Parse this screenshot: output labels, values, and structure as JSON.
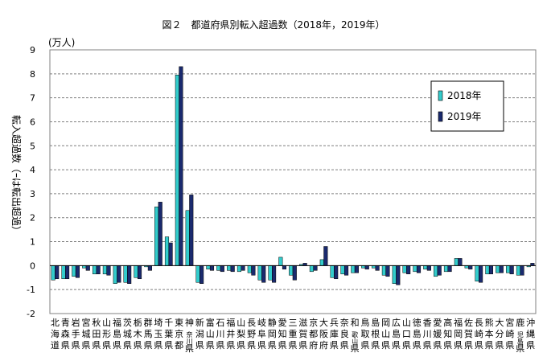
{
  "chart_data": {
    "type": "bar",
    "title": "図２　都道府県別転入超過数（2018年，2019年）",
    "unit_label": "(万人)",
    "ylabel": "転入超過数（ｰは転出超過）",
    "ylim": [
      -2,
      9
    ],
    "yticks": [
      -2,
      -1,
      0,
      1,
      2,
      3,
      4,
      5,
      6,
      7,
      8,
      9
    ],
    "grid": true,
    "legend_position": "top-right",
    "categories": [
      "北海道",
      "青森県",
      "岩手県",
      "宮城県",
      "秋田県",
      "山形県",
      "福島県",
      "茨城県",
      "栃木県",
      "群馬県",
      "埼玉県",
      "千葉県",
      "東京都",
      "神奈川県",
      "新潟県",
      "富山県",
      "石川県",
      "福井県",
      "山梨県",
      "長野県",
      "岐阜県",
      "静岡県",
      "愛知県",
      "三重県",
      "滋賀県",
      "京都府",
      "大阪府",
      "兵庫県",
      "奈良県",
      "和歌山県",
      "鳥取県",
      "島根県",
      "岡山県",
      "広島県",
      "山口県",
      "徳島県",
      "香川県",
      "愛媛県",
      "高知県",
      "福岡県",
      "佐賀県",
      "長崎県",
      "熊本県",
      "大分県",
      "宮崎県",
      "鹿児島県",
      "沖縄県"
    ],
    "category_label_lines": [
      [
        "北",
        "海",
        "道"
      ],
      [
        "青",
        "森",
        "県"
      ],
      [
        "岩",
        "手",
        "県"
      ],
      [
        "宮",
        "城",
        "県"
      ],
      [
        "秋",
        "田",
        "県"
      ],
      [
        "山",
        "形",
        "県"
      ],
      [
        "福",
        "島",
        "県"
      ],
      [
        "茨",
        "城",
        "県"
      ],
      [
        "栃",
        "木",
        "県"
      ],
      [
        "群",
        "馬",
        "県"
      ],
      [
        "埼",
        "玉",
        "県"
      ],
      [
        "千",
        "葉",
        "県"
      ],
      [
        "東",
        "京",
        "都"
      ],
      [
        "神",
        "奈川",
        "県"
      ],
      [
        "新",
        "潟",
        "県"
      ],
      [
        "富",
        "山",
        "県"
      ],
      [
        "石",
        "川",
        "県"
      ],
      [
        "福",
        "井",
        "県"
      ],
      [
        "山",
        "梨",
        "県"
      ],
      [
        "長",
        "野",
        "県"
      ],
      [
        "岐",
        "阜",
        "県"
      ],
      [
        "静",
        "岡",
        "県"
      ],
      [
        "愛",
        "知",
        "県"
      ],
      [
        "三",
        "重",
        "県"
      ],
      [
        "滋",
        "賀",
        "県"
      ],
      [
        "京",
        "都",
        "府"
      ],
      [
        "大",
        "阪",
        "府"
      ],
      [
        "兵",
        "庫",
        "県"
      ],
      [
        "奈",
        "良",
        "県"
      ],
      [
        "和",
        "歌山",
        "県"
      ],
      [
        "鳥",
        "取",
        "県"
      ],
      [
        "島",
        "根",
        "県"
      ],
      [
        "岡",
        "山",
        "県"
      ],
      [
        "広",
        "島",
        "県"
      ],
      [
        "山",
        "口",
        "県"
      ],
      [
        "徳",
        "島",
        "県"
      ],
      [
        "香",
        "川",
        "県"
      ],
      [
        "愛",
        "媛",
        "県"
      ],
      [
        "高",
        "知",
        "県"
      ],
      [
        "福",
        "岡",
        "県"
      ],
      [
        "佐",
        "賀",
        "県"
      ],
      [
        "長",
        "崎",
        "県"
      ],
      [
        "熊",
        "本",
        "県"
      ],
      [
        "大",
        "分",
        "県"
      ],
      [
        "宮",
        "崎",
        "県"
      ],
      [
        "鹿",
        "児島",
        "県"
      ],
      [
        "沖",
        "縄",
        "県"
      ]
    ],
    "series": [
      {
        "name": "2018年",
        "color": "#33cccc",
        "values": [
          -0.6,
          -0.55,
          -0.45,
          -0.1,
          -0.35,
          -0.35,
          -0.75,
          -0.7,
          -0.5,
          -0.05,
          2.45,
          1.2,
          7.95,
          2.3,
          -0.7,
          -0.15,
          -0.2,
          -0.2,
          -0.25,
          -0.3,
          -0.6,
          -0.6,
          0.35,
          -0.4,
          0.05,
          -0.25,
          0.25,
          -0.5,
          -0.35,
          -0.3,
          -0.1,
          -0.1,
          -0.4,
          -0.75,
          -0.3,
          -0.25,
          -0.15,
          -0.45,
          -0.25,
          0.3,
          -0.1,
          -0.65,
          -0.35,
          -0.3,
          -0.3,
          -0.4,
          -0.05
        ]
      },
      {
        "name": "2019年",
        "color": "#1a2a6e",
        "values": [
          -0.55,
          -0.55,
          -0.5,
          -0.2,
          -0.35,
          -0.4,
          -0.7,
          -0.75,
          -0.55,
          -0.2,
          2.65,
          0.95,
          8.3,
          2.95,
          -0.75,
          -0.2,
          -0.25,
          -0.25,
          -0.2,
          -0.4,
          -0.7,
          -0.7,
          -0.15,
          -0.6,
          0.1,
          -0.2,
          0.8,
          -0.55,
          -0.4,
          -0.3,
          -0.15,
          -0.2,
          -0.45,
          -0.8,
          -0.35,
          -0.3,
          -0.2,
          -0.4,
          -0.25,
          0.3,
          -0.15,
          -0.7,
          -0.35,
          -0.3,
          -0.35,
          -0.4,
          0.1
        ]
      }
    ]
  }
}
